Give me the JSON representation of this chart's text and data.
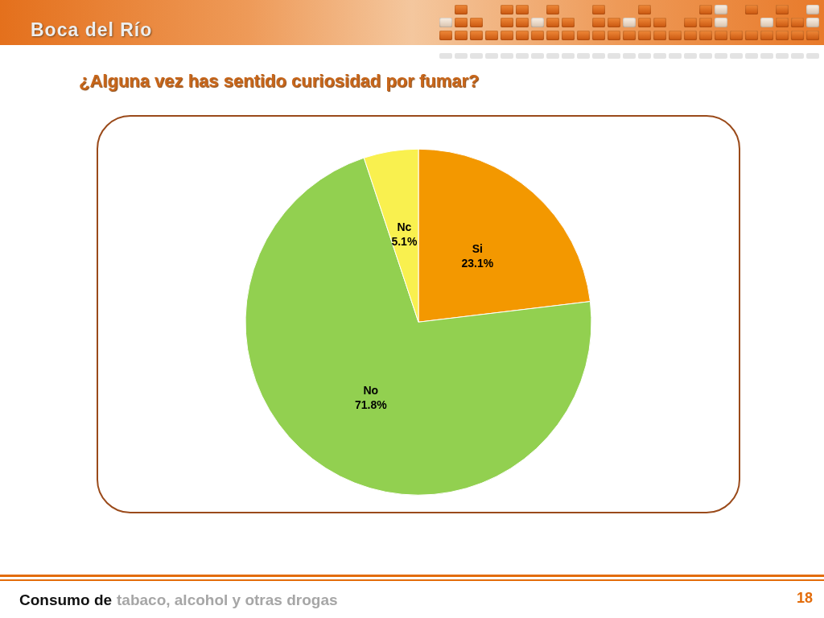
{
  "chart_data": {
    "type": "pie",
    "title": "¿Alguna vez has sentido curiosidad por fumar?",
    "categories": [
      "Si",
      "No",
      "Nc"
    ],
    "values": [
      23.1,
      71.8,
      5.1
    ],
    "colors": [
      "#f39800",
      "#92d050",
      "#f9f04f"
    ],
    "value_labels": [
      "23.1%",
      "71.8%",
      "5.1%"
    ],
    "annotations": [
      "Boca del Río",
      "Consumo de",
      "tabaco, alcohol y otras drogas",
      "18"
    ]
  }
}
